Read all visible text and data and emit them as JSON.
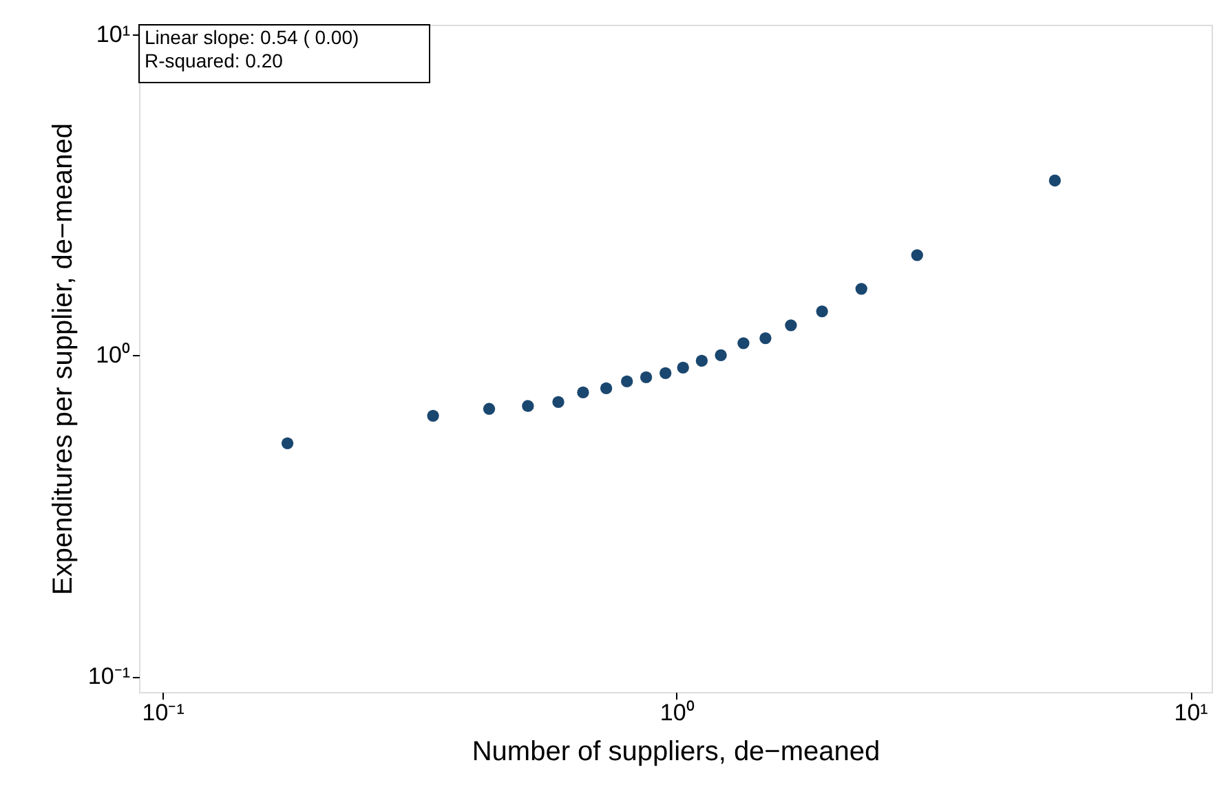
{
  "chart_data": {
    "type": "scatter",
    "xlabel": "Number of suppliers, de−meaned",
    "ylabel": "Expenditures per supplier, de−meaned",
    "log": "xy",
    "grid": false,
    "marker": "circle",
    "xlim": [
      0.09,
      11.0
    ],
    "ylim": [
      0.0893,
      10.7
    ],
    "xticks": [
      {
        "value": 0.1,
        "label": "10⁻¹"
      },
      {
        "value": 1,
        "label": "10⁰"
      },
      {
        "value": 10,
        "label": "10¹"
      }
    ],
    "yticks": [
      {
        "value": 0.1,
        "label": "10⁻¹"
      },
      {
        "value": 1,
        "label": "10⁰"
      },
      {
        "value": 10,
        "label": "10¹"
      }
    ],
    "annotations": [
      "Linear slope:  0.54 ( 0.00)",
      "R-squared:  0.20"
    ],
    "series": [
      {
        "color": "#1a476f",
        "x": [
          0.175,
          0.336,
          0.432,
          0.514,
          0.589,
          0.658,
          0.73,
          0.801,
          0.873,
          0.952,
          1.03,
          1.12,
          1.22,
          1.35,
          1.49,
          1.67,
          1.92,
          2.29,
          2.94,
          5.45
        ],
        "values": [
          0.532,
          0.648,
          0.681,
          0.695,
          0.715,
          0.766,
          0.789,
          0.829,
          0.854,
          0.88,
          0.915,
          0.961,
          1.0,
          1.09,
          1.13,
          1.24,
          1.37,
          1.61,
          2.05,
          3.5
        ]
      }
    ]
  }
}
